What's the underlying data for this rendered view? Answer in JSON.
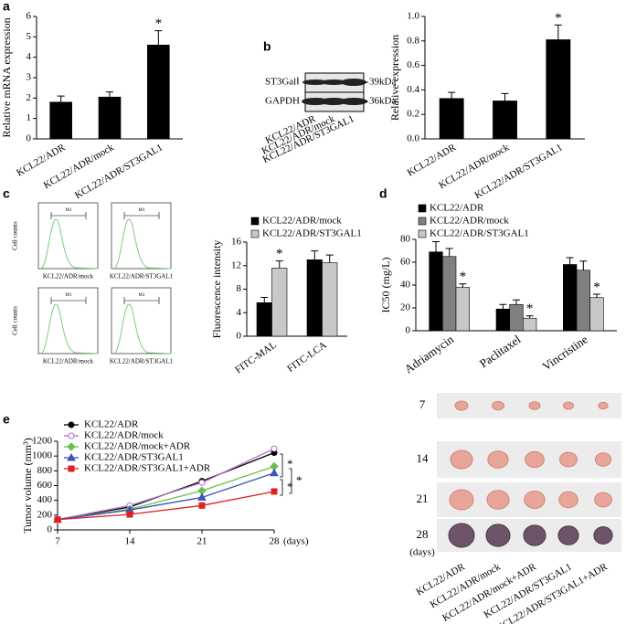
{
  "panel_letters": [
    "a",
    "b",
    "c",
    "d",
    "e"
  ],
  "blot": {
    "bands": [
      "ST3GalⅠ",
      "GAPDH"
    ],
    "sizes": [
      "39kDa",
      "36kDa"
    ],
    "lanes": [
      "KCL22/ADR",
      "KCL22/ADR/mock",
      "KCL22/ADR/ST3GAL1"
    ]
  },
  "flow": {
    "ylabel": "Cell counts",
    "samples": [
      "KCL22/ADR/mock",
      "KCL22/ADR/ST3GAL1"
    ],
    "gate": "M1"
  },
  "tumors": {
    "days": [
      "7",
      "14",
      "21",
      "28"
    ],
    "unit": "(days)",
    "groups": [
      "KCL22/ADR",
      "KCL22/ADR/mock",
      "KCL22/ADR/mock+ADR",
      "KCL22/ADR/ST3GAL1",
      "KCL22/ADR/ST3GAL1+ADR"
    ]
  },
  "chart_data": [
    {
      "type": "bar",
      "ylabel": "Relative mRNA expression",
      "categories": [
        "KCL22/ADR",
        "KCL22/ADR/mock",
        "KCL22/ADR/ST3GAL1"
      ],
      "values": [
        1.8,
        2.05,
        4.6
      ],
      "errors": [
        0.3,
        0.25,
        0.7
      ],
      "markers": [
        null,
        null,
        "*"
      ],
      "color": "#000000",
      "ylim": [
        0,
        6
      ],
      "yticks": [
        0,
        1,
        2,
        3,
        4,
        5,
        6
      ]
    },
    {
      "type": "bar",
      "ylabel": "Relative expression",
      "categories": [
        "KCL22/ADR",
        "KCL22/ADR/mock",
        "KCL22/ADR/ST3GAL1"
      ],
      "values": [
        0.33,
        0.31,
        0.81
      ],
      "errors": [
        0.05,
        0.06,
        0.12
      ],
      "markers": [
        null,
        null,
        "*"
      ],
      "color": "#000000",
      "ylim": [
        0,
        1
      ],
      "yticks": [
        {
          "value": 0,
          "label": "0.0"
        },
        0.2,
        0.4,
        0.6,
        0.8,
        {
          "value": 1,
          "label": "1.0"
        }
      ]
    },
    {
      "type": "bar",
      "ylabel": "Fluorescence intensity",
      "categories": [
        "FITC-MAL",
        "FITC-LCA"
      ],
      "series": [
        {
          "name": "KCL22/ADR/mock",
          "color": "#000000",
          "values": [
            5.7,
            13
          ],
          "errors": [
            0.9,
            1.5
          ]
        },
        {
          "name": "KCL22/ADR/ST3GAL1",
          "color": "#c8c8c8",
          "values": [
            11.6,
            12.5
          ],
          "errors": [
            1.2,
            1.3
          ],
          "markers": [
            "*",
            null
          ]
        }
      ],
      "ylim": [
        0,
        16
      ],
      "yticks": [
        0,
        4,
        8,
        12,
        16
      ]
    },
    {
      "type": "bar",
      "ylabel": "IC50 (mg/L)",
      "categories": [
        "Adriamycin",
        "Paclitaxel",
        "Vincristine"
      ],
      "series": [
        {
          "name": "KCL22/ADR",
          "color": "#000000",
          "values": [
            69,
            19,
            58
          ],
          "errors": [
            9,
            4,
            6
          ]
        },
        {
          "name": "KCL22/ADR/mock",
          "color": "#808080",
          "values": [
            65,
            23,
            53
          ],
          "errors": [
            7,
            4,
            8
          ]
        },
        {
          "name": "KCL22/ADR/ST3GAL1",
          "color": "#c8c8c8",
          "values": [
            38,
            11,
            29
          ],
          "errors": [
            3,
            2,
            3
          ],
          "markers": [
            "*",
            "*",
            "*"
          ]
        }
      ],
      "ylim": [
        0,
        80
      ],
      "yticks": [
        0,
        20,
        40,
        60,
        80
      ]
    },
    {
      "type": "line",
      "ylabel": "Tumor volume (mm³)",
      "xlabel": "(days)",
      "x": [
        7,
        14,
        21,
        28
      ],
      "xlim": [
        7,
        28
      ],
      "xticks": [
        7,
        14,
        21,
        28
      ],
      "ylim": [
        0,
        1200
      ],
      "yticks": [
        0,
        200,
        400,
        600,
        800,
        1000,
        1200
      ],
      "annotations": [
        "*",
        "*",
        "*"
      ],
      "series": [
        {
          "name": "KCL22/ADR",
          "color": "#000000",
          "marker": "circle",
          "values": [
            140,
            310,
            660,
            1045
          ]
        },
        {
          "name": "KCL22/ADR/mock",
          "color": "#b36ec8",
          "marker": "open-circle",
          "values": [
            140,
            330,
            640,
            1100
          ]
        },
        {
          "name": "KCL22/ADR/mock+ADR",
          "color": "#6cc04a",
          "marker": "diamond",
          "values": [
            140,
            280,
            530,
            860
          ]
        },
        {
          "name": "KCL22/ADR/ST3GAL1",
          "color": "#3a55b4",
          "marker": "triangle",
          "values": [
            140,
            270,
            440,
            770
          ]
        },
        {
          "name": "KCL22/ADR/ST3GAL1+ADR",
          "color": "#e02020",
          "marker": "square",
          "values": [
            140,
            210,
            330,
            520
          ]
        }
      ]
    }
  ]
}
